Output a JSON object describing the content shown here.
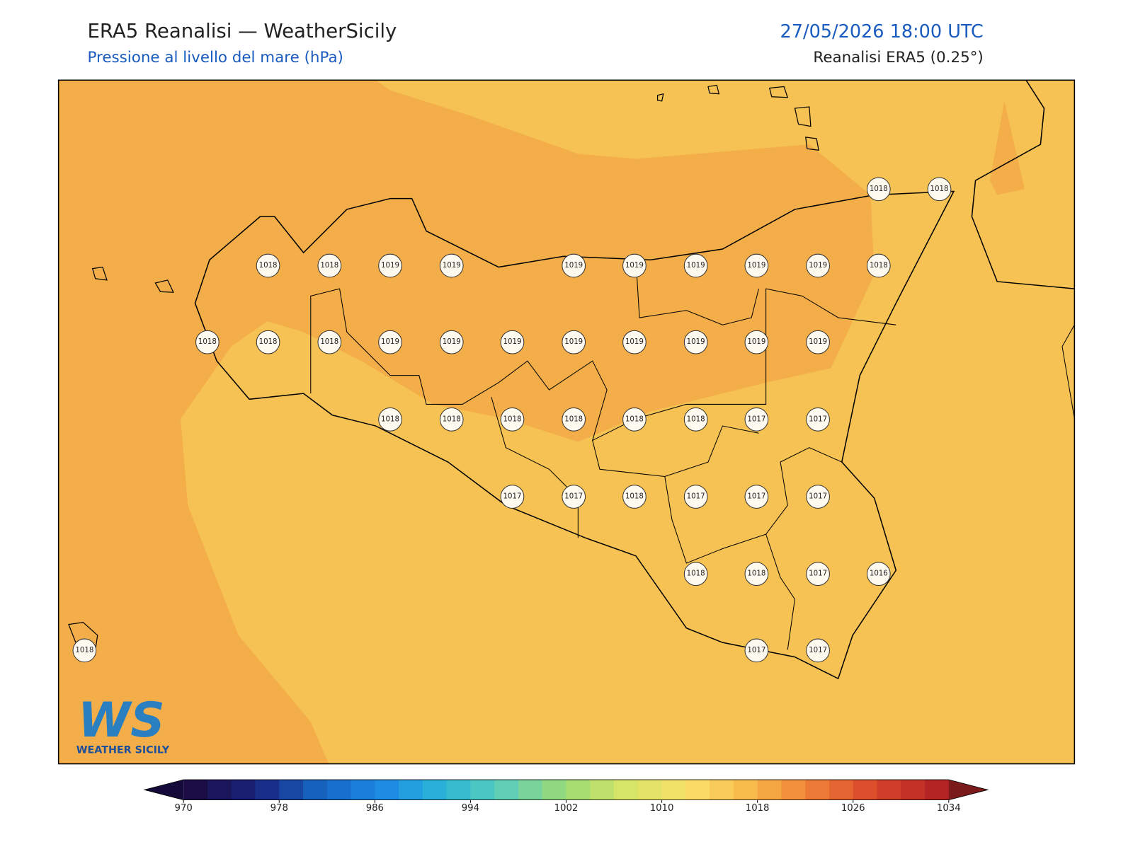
{
  "header": {
    "title": "ERA5 Reanalisi — WeatherSicily",
    "subtitle": "Pressione al livello del mare (hPa)",
    "datetime": "27/05/2026 18:00 UTC",
    "source": "Reanalisi ERA5 (0.25°)"
  },
  "stations": [
    1018,
    1018,
    1018,
    1018,
    1019,
    1019,
    1019,
    1019,
    1019,
    1019,
    1019,
    1018,
    1018,
    1018,
    1018,
    1019,
    1019,
    1019,
    1019,
    1019,
    1019,
    1019,
    1019,
    1018,
    1018,
    1018,
    1018,
    1018,
    1018,
    1017,
    1017,
    1017,
    1017,
    1018,
    1017,
    1017,
    1017,
    1018,
    1018,
    1017,
    1016,
    1018,
    1017,
    1017
  ],
  "colorbar": {
    "ticks": [
      970,
      978,
      986,
      994,
      1002,
      1010,
      1018,
      1026,
      1034
    ]
  },
  "logo": {
    "text": "WS",
    "caption": "WEATHER SICILY"
  }
}
